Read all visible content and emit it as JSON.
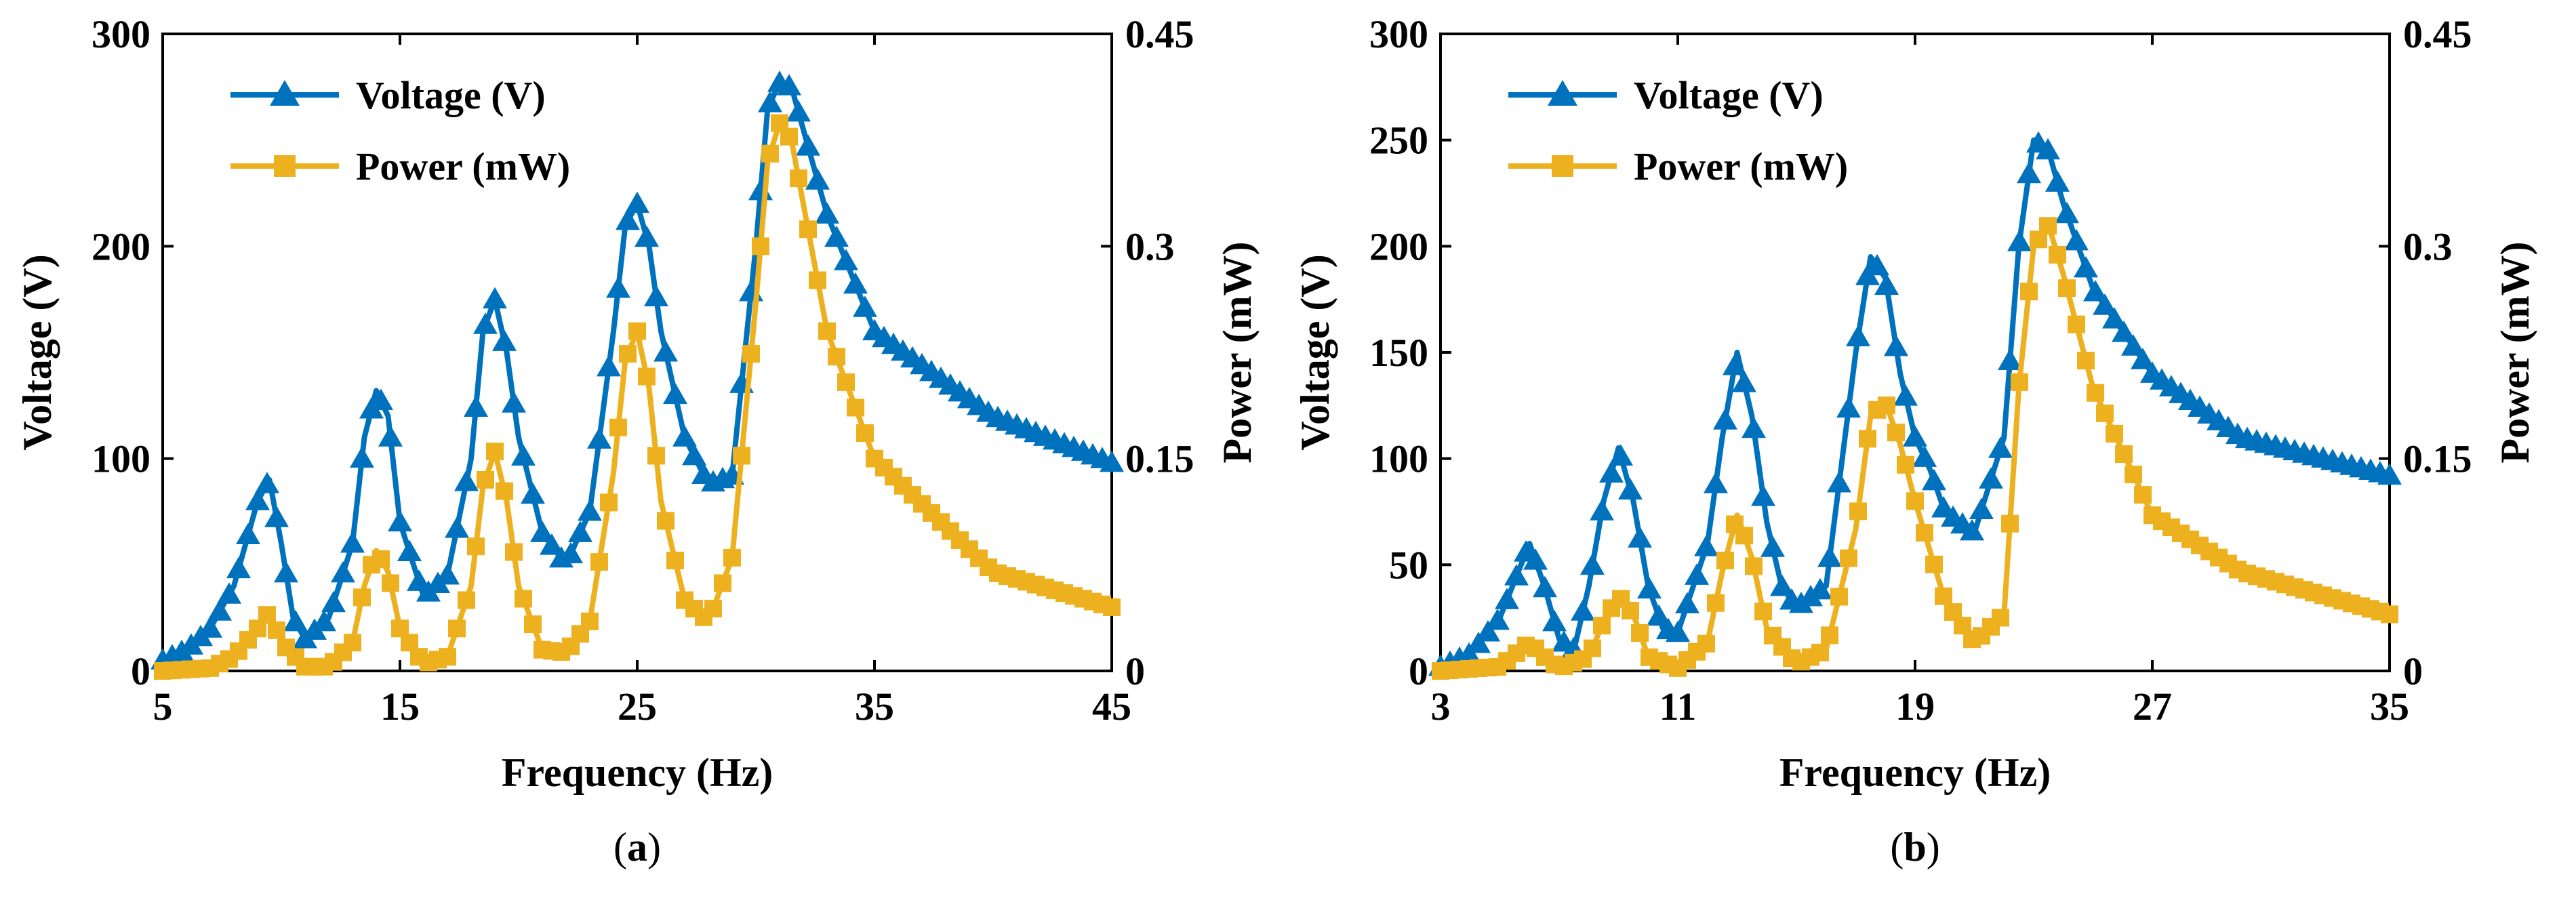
{
  "colors": {
    "voltage": "#0072BD",
    "power": "#EDB120",
    "axis": "#000000",
    "background": "#ffffff"
  },
  "chart_data": [
    {
      "type": "line",
      "caption": "a",
      "xlabel": "Frequency (Hz)",
      "ylabel": "Voltage (V)",
      "y2label": "Power (mW)",
      "xlim": [
        5,
        45
      ],
      "ylim": [
        0,
        300
      ],
      "y2lim": [
        0,
        0.45
      ],
      "xticks": [
        5,
        15,
        25,
        35,
        45
      ],
      "yticks": [
        0,
        100,
        200,
        300
      ],
      "y2ticks": [
        "0",
        "0.15",
        "0.3",
        "0.45"
      ],
      "grid": false,
      "legend": "top-left",
      "series": [
        {
          "name": "Voltage (V)",
          "axis": "left",
          "marker": "triangle",
          "color": "#0072BD",
          "x": [
            5,
            6,
            7,
            8,
            8.5,
            9,
            9.5,
            10,
            10.5,
            11,
            12,
            13,
            13.5,
            14,
            14.5,
            15,
            16,
            17,
            18,
            18.5,
            19,
            19.5,
            20,
            21,
            22,
            23,
            24,
            24.5,
            25,
            25.5,
            26,
            27,
            28,
            29,
            30,
            30.5,
            31,
            31.5,
            32,
            33,
            35,
            40,
            45
          ],
          "y": [
            5,
            10,
            20,
            40,
            60,
            80,
            90,
            60,
            25,
            15,
            25,
            60,
            110,
            132,
            120,
            70,
            35,
            45,
            100,
            160,
            175,
            150,
            110,
            65,
            50,
            75,
            160,
            210,
            220,
            200,
            160,
            110,
            88,
            92,
            200,
            265,
            277,
            275,
            255,
            215,
            160,
            120,
            98
          ]
        },
        {
          "name": "Power (mW)",
          "axis": "right",
          "marker": "square",
          "color": "#EDB120",
          "x": [
            5,
            7,
            8,
            9,
            9.5,
            10,
            11,
            12,
            13,
            13.5,
            14,
            14.5,
            15,
            16,
            17,
            18,
            18.5,
            19,
            19.5,
            20,
            21,
            22,
            23,
            24,
            24.5,
            25,
            25.5,
            26,
            27,
            28,
            29,
            30,
            30.5,
            31,
            31.5,
            32,
            33,
            35,
            40,
            45
          ],
          "y": [
            0,
            0.002,
            0.01,
            0.03,
            0.042,
            0.02,
            0.003,
            0.003,
            0.02,
            0.06,
            0.085,
            0.07,
            0.03,
            0.005,
            0.01,
            0.06,
            0.13,
            0.155,
            0.12,
            0.06,
            0.015,
            0.013,
            0.035,
            0.14,
            0.22,
            0.24,
            0.2,
            0.12,
            0.05,
            0.035,
            0.08,
            0.26,
            0.36,
            0.387,
            0.375,
            0.33,
            0.24,
            0.15,
            0.07,
            0.045
          ]
        }
      ]
    },
    {
      "type": "line",
      "caption": "b",
      "xlabel": "Frequency (Hz)",
      "ylabel": "Voltage (V)",
      "y2label": "Power (mW)",
      "xlim": [
        3,
        35
      ],
      "ylim": [
        0,
        300
      ],
      "y2lim": [
        0,
        0.45
      ],
      "xticks": [
        3,
        11,
        19,
        27,
        35
      ],
      "yticks": [
        0,
        50,
        100,
        150,
        200,
        250,
        300
      ],
      "y2ticks": [
        "0",
        "0.15",
        "0.3",
        "0.45"
      ],
      "grid": false,
      "legend": "top-left",
      "series": [
        {
          "name": "Voltage (V)",
          "axis": "left",
          "marker": "triangle",
          "color": "#0072BD",
          "x": [
            3,
            4,
            5,
            6,
            6.5,
            7,
            7.5,
            8,
            8.5,
            9,
            9.5,
            10,
            10.5,
            11,
            12,
            12.5,
            13,
            13.5,
            14,
            14.5,
            15,
            16,
            17,
            17.5,
            18,
            18.5,
            19,
            19.5,
            20,
            21,
            22,
            22.5,
            23,
            23.5,
            24,
            25,
            27,
            30,
            35
          ],
          "y": [
            2,
            8,
            25,
            60,
            40,
            15,
            10,
            40,
            80,
            105,
            80,
            40,
            20,
            18,
            60,
            110,
            150,
            120,
            70,
            40,
            30,
            40,
            150,
            195,
            185,
            140,
            110,
            95,
            75,
            65,
            110,
            200,
            250,
            245,
            220,
            180,
            140,
            110,
            92
          ]
        },
        {
          "name": "Power (mW)",
          "axis": "right",
          "marker": "square",
          "color": "#EDB120",
          "x": [
            3,
            5,
            6,
            6.5,
            7,
            8,
            8.5,
            9,
            9.5,
            10,
            11,
            12,
            12.5,
            13,
            13.5,
            14,
            15,
            16,
            17,
            17.5,
            18,
            18.5,
            19,
            20,
            21,
            22,
            22.5,
            23,
            23.5,
            24,
            25,
            27,
            30,
            35
          ],
          "y": [
            0,
            0.003,
            0.02,
            0.01,
            0.002,
            0.01,
            0.035,
            0.053,
            0.04,
            0.01,
            0.002,
            0.02,
            0.07,
            0.11,
            0.08,
            0.03,
            0.005,
            0.015,
            0.1,
            0.18,
            0.19,
            0.16,
            0.12,
            0.05,
            0.02,
            0.04,
            0.2,
            0.3,
            0.315,
            0.28,
            0.2,
            0.11,
            0.07,
            0.04
          ]
        }
      ]
    }
  ]
}
